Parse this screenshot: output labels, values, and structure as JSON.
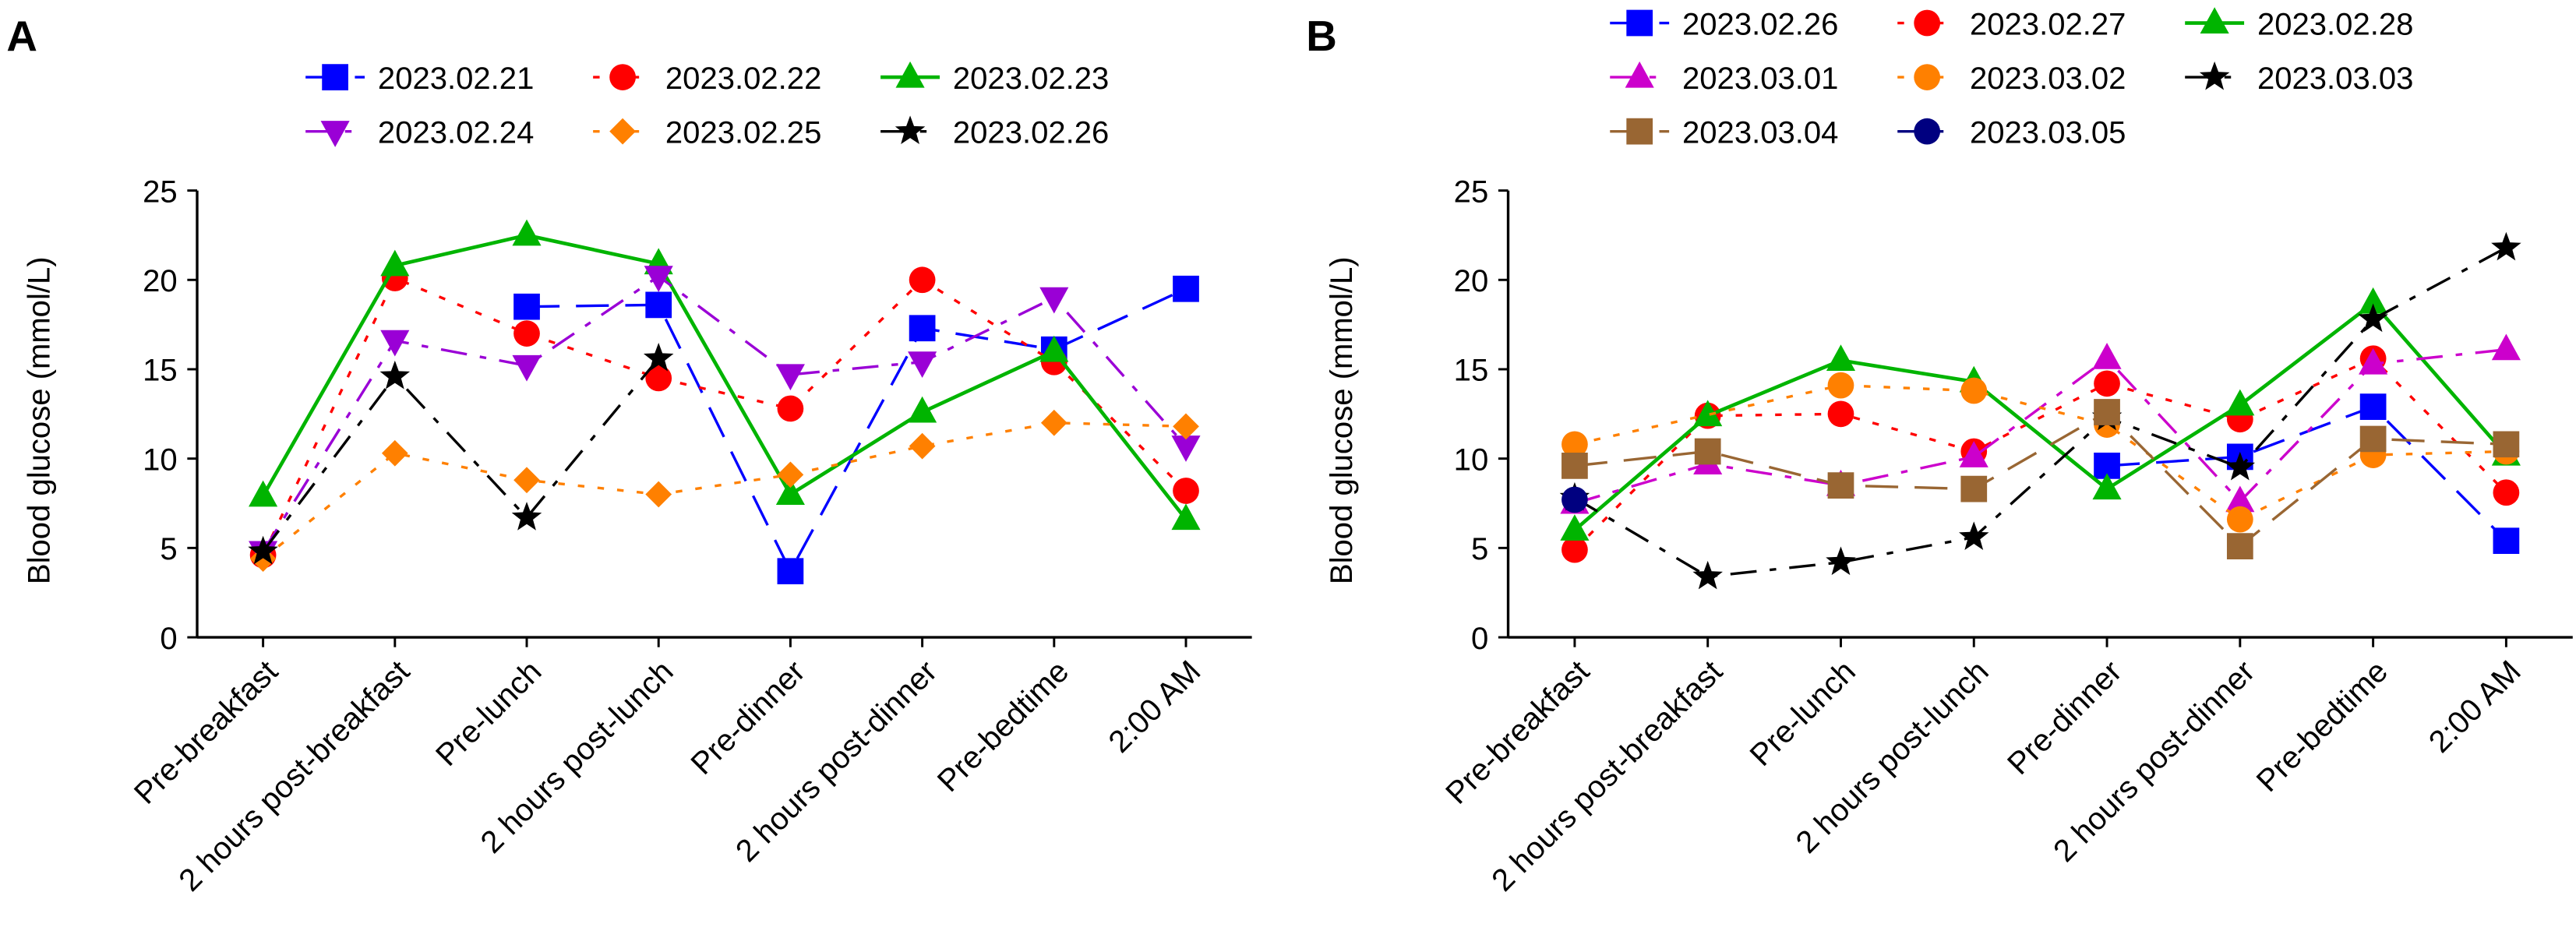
{
  "chart_data": [
    {
      "type": "line",
      "panel_label": "A",
      "ylabel": "Blood glucose (mmol/L)",
      "xlabel": "",
      "ylim": [
        0,
        25
      ],
      "yticks": [
        0,
        5,
        10,
        15,
        20,
        25
      ],
      "grid": false,
      "legend": "top, 3 columns",
      "categories": [
        "Pre-breakfast",
        "2 hours post-breakfast",
        "Pre-lunch",
        "2 hours post-lunch",
        "Pre-dinner",
        "2 hours post-dinner",
        "Pre-bedtime",
        "2:00 AM"
      ],
      "series": [
        {
          "name": "2023.02.21",
          "color": "#0000ff",
          "dash": "dashed",
          "marker": "square",
          "values": [
            null,
            null,
            18.5,
            18.6,
            3.7,
            17.3,
            16.1,
            19.5
          ]
        },
        {
          "name": "2023.02.22",
          "color": "#ff0000",
          "dash": "dotted",
          "marker": "circle",
          "values": [
            4.6,
            20.1,
            17.0,
            14.5,
            12.8,
            20.0,
            15.4,
            8.2
          ]
        },
        {
          "name": "2023.02.23",
          "color": "#00b400",
          "dash": "solid",
          "marker": "triangle-up",
          "values": [
            7.9,
            20.8,
            22.5,
            20.9,
            8.0,
            12.6,
            16.0,
            6.6
          ]
        },
        {
          "name": "2023.02.24",
          "color": "#9a00d6",
          "dash": "dashdot",
          "marker": "triangle-down",
          "values": [
            4.8,
            16.6,
            15.2,
            20.2,
            14.7,
            15.4,
            19.0,
            10.7
          ]
        },
        {
          "name": "2023.02.25",
          "color": "#ff8000",
          "dash": "dotted",
          "marker": "diamond",
          "values": [
            4.4,
            10.3,
            8.8,
            8.0,
            9.1,
            10.7,
            12.0,
            11.8
          ]
        },
        {
          "name": "2023.02.26",
          "color": "#000000",
          "dash": "dashdot",
          "marker": "star",
          "values": [
            4.8,
            14.6,
            6.7,
            15.6,
            null,
            null,
            null,
            null
          ]
        }
      ]
    },
    {
      "type": "line",
      "panel_label": "B",
      "ylabel": "Blood glucose (mmol/L)",
      "xlabel": "",
      "ylim": [
        0,
        25
      ],
      "yticks": [
        0,
        5,
        10,
        15,
        20,
        25
      ],
      "grid": false,
      "legend": "top, 3 columns",
      "categories": [
        "Pre-breakfast",
        "2 hours post-breakfast",
        "Pre-lunch",
        "2 hours post-lunch",
        "Pre-dinner",
        "2 hours post-dinner",
        "Pre-bedtime",
        "2:00 AM"
      ],
      "series": [
        {
          "name": "2023.02.26",
          "color": "#0000ff",
          "dash": "dashed",
          "marker": "square",
          "values": [
            null,
            null,
            null,
            null,
            9.6,
            10.1,
            12.9,
            5.4
          ]
        },
        {
          "name": "2023.02.27",
          "color": "#ff0000",
          "dash": "dotted",
          "marker": "circle",
          "values": [
            4.9,
            12.4,
            12.5,
            10.4,
            14.2,
            12.2,
            15.6,
            8.1
          ]
        },
        {
          "name": "2023.02.28",
          "color": "#00b400",
          "dash": "solid",
          "marker": "triangle-up",
          "values": [
            6.0,
            12.4,
            15.5,
            14.3,
            8.3,
            13.0,
            18.7,
            10.2
          ]
        },
        {
          "name": "2023.03.01",
          "color": "#cc00cc",
          "dash": "dashdot",
          "marker": "triangle-up",
          "values": [
            7.5,
            9.7,
            8.5,
            10.1,
            15.6,
            7.6,
            15.3,
            16.1
          ]
        },
        {
          "name": "2023.03.02",
          "color": "#ff8000",
          "dash": "dotted",
          "marker": "circle",
          "values": [
            10.8,
            null,
            14.1,
            13.8,
            11.9,
            6.6,
            10.2,
            10.4
          ]
        },
        {
          "name": "2023.03.03",
          "color": "#000000",
          "dash": "dashdot",
          "marker": "star",
          "values": [
            7.8,
            3.4,
            4.2,
            5.6,
            12.3,
            9.5,
            17.8,
            21.8
          ]
        },
        {
          "name": "2023.03.04",
          "color": "#996633",
          "dash": "dashed",
          "marker": "square",
          "values": [
            9.6,
            10.4,
            8.5,
            8.3,
            12.6,
            5.1,
            11.1,
            10.8
          ]
        },
        {
          "name": "2023.03.05",
          "color": "#000080",
          "dash": "dashdot",
          "marker": "circle",
          "values": [
            7.7,
            null,
            null,
            null,
            null,
            null,
            null,
            null
          ]
        }
      ]
    }
  ]
}
